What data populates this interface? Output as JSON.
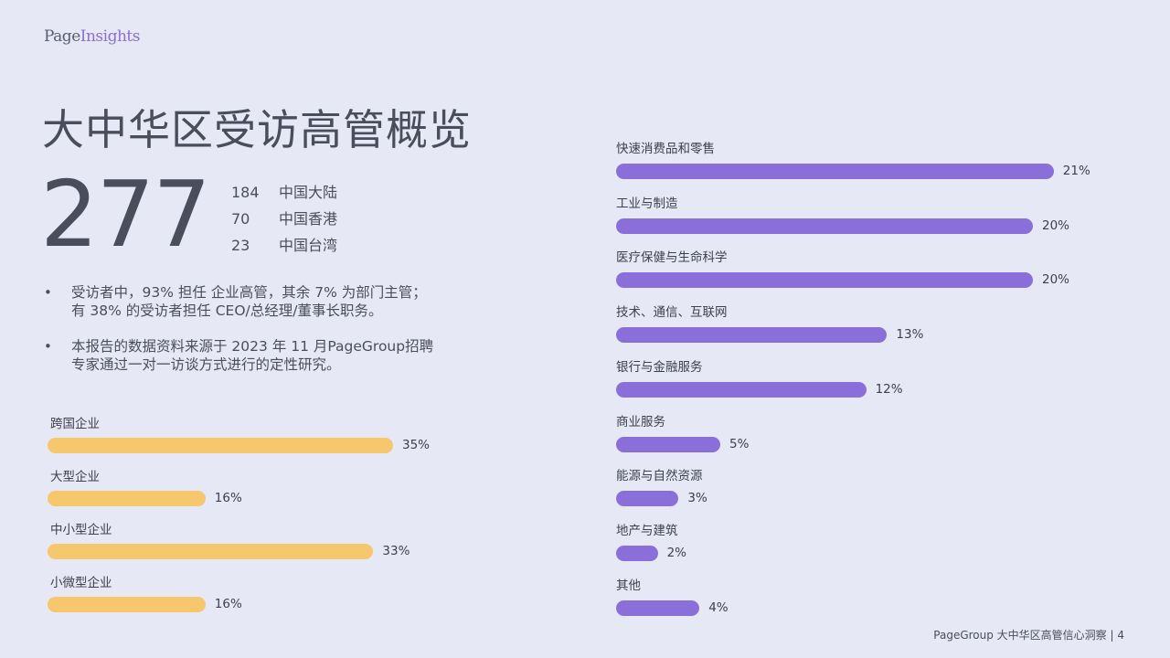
{
  "logo": {
    "part1": "Page",
    "part2": "Insights"
  },
  "title": "大中华区受访高管概览",
  "total": "277",
  "breakdown": [
    {
      "count": "184",
      "region": "中国大陆"
    },
    {
      "count": "70",
      "region": "中国香港"
    },
    {
      "count": "23",
      "region": "中国台湾"
    }
  ],
  "notes": [
    {
      "line1": "受访者中，93% 担任 企业高管，其余 7% 为部门主管；",
      "line2": "有 38% 的受访者担任 CEO/总经理/董事长职务。"
    },
    {
      "line1": "本报告的数据资料来源于 2023 年 11 月PageGroup招聘",
      "line2": "专家通过一对一访谈方式进行的定性研究。"
    }
  ],
  "chart_data": [
    {
      "type": "bar",
      "orientation": "horizontal",
      "categories": [
        "跨国企业",
        "大型企业",
        "中小型企业",
        "小微型企业"
      ],
      "values": [
        35,
        16,
        33,
        16
      ],
      "labels": [
        "35%",
        "16%",
        "33%",
        "16%"
      ],
      "color": "#f6c76c"
    },
    {
      "type": "bar",
      "orientation": "horizontal",
      "categories": [
        "快速消费品和零售",
        "工业与制造",
        "医疗保健与生命科学",
        "技术、通信、互联网",
        "银行与金融服务",
        "商业服务",
        "能源与自然资源",
        "地产与建筑",
        "其他"
      ],
      "values": [
        21,
        20,
        20,
        13,
        12,
        5,
        3,
        2,
        4
      ],
      "labels": [
        "21%",
        "20%",
        "20%",
        "13%",
        "12%",
        "5%",
        "3%",
        "2%",
        "4%"
      ],
      "color": "#8a6fdb"
    }
  ],
  "footer": "PageGroup 大中华区高管信心洞察 | 4"
}
